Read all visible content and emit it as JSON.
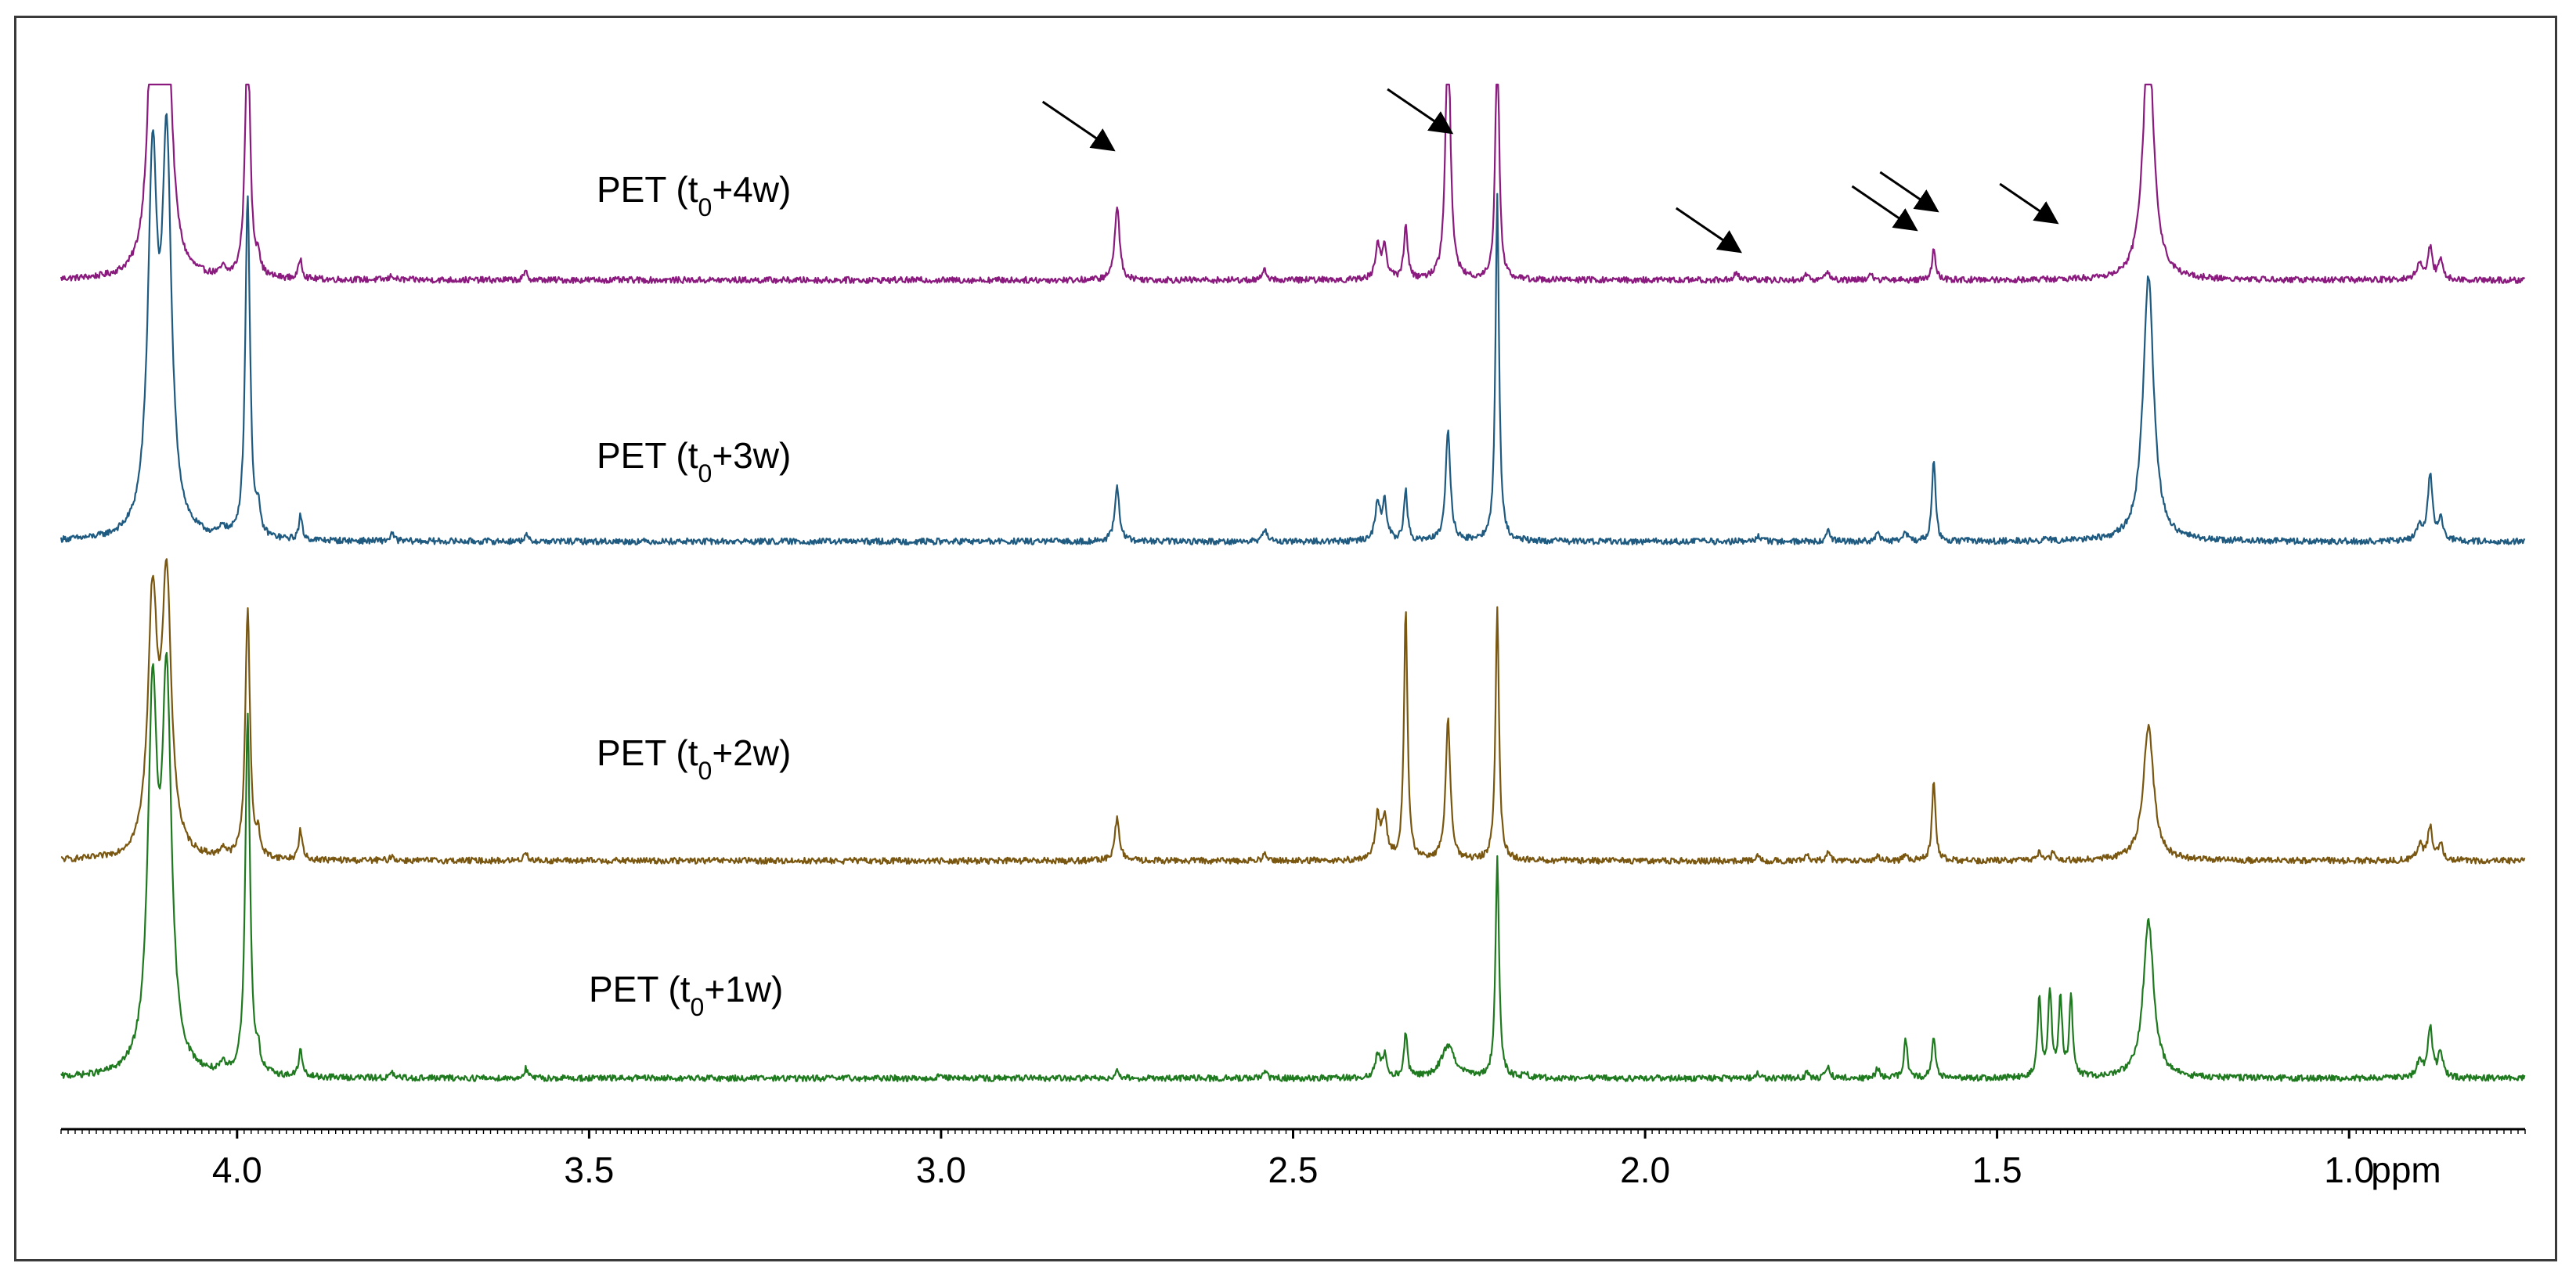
{
  "chart_data": {
    "type": "line",
    "title": "",
    "xlabel": "ppm",
    "x_reversed": true,
    "xlim": [
      4.25,
      0.75
    ],
    "x_ticks": [
      {
        "value": 4.0,
        "label": "4.0"
      },
      {
        "value": 3.5,
        "label": "3.5"
      },
      {
        "value": 3.0,
        "label": "3.0"
      },
      {
        "value": 2.5,
        "label": "2.5"
      },
      {
        "value": 2.0,
        "label": "2.0"
      },
      {
        "value": 1.5,
        "label": "1.5"
      },
      {
        "value": 1.0,
        "label": "1.0"
      }
    ],
    "series": [
      {
        "label_prefix": "PET (t",
        "label_sub": "0",
        "label_suffix": "+4w",
        "color": "#8a1a7e",
        "peaks": [
          [
            4.12,
            1.7,
            0.008
          ],
          [
            4.1,
            1.8,
            0.008
          ],
          [
            3.985,
            1.7,
            0.004
          ],
          [
            4.02,
            0.05,
            0.004
          ],
          [
            3.97,
            0.12,
            0.003
          ],
          [
            3.91,
            0.13,
            0.003
          ],
          [
            3.78,
            0.03,
            0.003
          ],
          [
            3.59,
            0.05,
            0.003
          ],
          [
            2.75,
            0.48,
            0.004
          ],
          [
            2.54,
            0.07,
            0.003
          ],
          [
            2.38,
            0.21,
            0.004
          ],
          [
            2.37,
            0.21,
            0.004
          ],
          [
            2.34,
            0.36,
            0.003
          ],
          [
            2.28,
            1.7,
            0.004
          ],
          [
            2.21,
            1.7,
            0.003
          ],
          [
            1.87,
            0.05,
            0.004
          ],
          [
            1.77,
            0.04,
            0.003
          ],
          [
            1.74,
            0.06,
            0.003
          ],
          [
            1.68,
            0.05,
            0.003
          ],
          [
            1.59,
            0.19,
            0.003
          ],
          [
            1.285,
            1.6,
            0.009
          ],
          [
            0.9,
            0.1,
            0.005
          ],
          [
            0.885,
            0.2,
            0.004
          ],
          [
            0.87,
            0.12,
            0.004
          ]
        ]
      },
      {
        "label_prefix": "PET (t",
        "label_sub": "0",
        "label_suffix": "+3w",
        "color": "#1f5a80",
        "peaks": [
          [
            4.12,
            2.3,
            0.008
          ],
          [
            4.1,
            2.4,
            0.008
          ],
          [
            3.985,
            2.2,
            0.004
          ],
          [
            4.02,
            0.06,
            0.004
          ],
          [
            3.97,
            0.14,
            0.003
          ],
          [
            3.91,
            0.15,
            0.003
          ],
          [
            3.78,
            0.05,
            0.003
          ],
          [
            3.59,
            0.04,
            0.003
          ],
          [
            2.75,
            0.34,
            0.004
          ],
          [
            2.54,
            0.09,
            0.003
          ],
          [
            2.38,
            0.24,
            0.004
          ],
          [
            2.37,
            0.24,
            0.004
          ],
          [
            2.34,
            0.32,
            0.003
          ],
          [
            2.28,
            0.72,
            0.004
          ],
          [
            2.21,
            2.2,
            0.003
          ],
          [
            1.84,
            0.04,
            0.003
          ],
          [
            1.74,
            0.07,
            0.003
          ],
          [
            1.67,
            0.07,
            0.003
          ],
          [
            1.63,
            0.06,
            0.003
          ],
          [
            1.59,
            0.53,
            0.003
          ],
          [
            1.43,
            0.02,
            0.004
          ],
          [
            1.285,
            1.7,
            0.009
          ],
          [
            0.9,
            0.1,
            0.005
          ],
          [
            0.885,
            0.42,
            0.004
          ],
          [
            0.87,
            0.14,
            0.004
          ]
        ]
      },
      {
        "label_prefix": "PET (t",
        "label_sub": "0",
        "label_suffix": "+2w",
        "color": "#7a5710",
        "peaks": [
          [
            4.12,
            1.6,
            0.008
          ],
          [
            4.1,
            1.7,
            0.008
          ],
          [
            3.985,
            1.6,
            0.004
          ],
          [
            4.02,
            0.06,
            0.004
          ],
          [
            3.97,
            0.12,
            0.003
          ],
          [
            3.91,
            0.19,
            0.003
          ],
          [
            3.78,
            0.03,
            0.003
          ],
          [
            3.59,
            0.06,
            0.003
          ],
          [
            2.75,
            0.27,
            0.004
          ],
          [
            2.54,
            0.06,
            0.003
          ],
          [
            2.38,
            0.27,
            0.004
          ],
          [
            2.37,
            0.27,
            0.004
          ],
          [
            2.34,
            1.6,
            0.003
          ],
          [
            2.28,
            0.9,
            0.004
          ],
          [
            2.21,
            1.6,
            0.003
          ],
          [
            1.84,
            0.03,
            0.003
          ],
          [
            1.77,
            0.03,
            0.003
          ],
          [
            1.74,
            0.05,
            0.003
          ],
          [
            1.67,
            0.04,
            0.003
          ],
          [
            1.63,
            0.04,
            0.003
          ],
          [
            1.59,
            0.5,
            0.003
          ],
          [
            1.44,
            0.05,
            0.003
          ],
          [
            1.42,
            0.05,
            0.003
          ],
          [
            1.285,
            0.85,
            0.009
          ],
          [
            0.9,
            0.1,
            0.005
          ],
          [
            0.885,
            0.21,
            0.004
          ],
          [
            0.87,
            0.1,
            0.004
          ]
        ]
      },
      {
        "label_prefix": "PET (t",
        "label_sub": "0",
        "label_suffix": "+1w",
        "color": "#1f7a1f",
        "peaks": [
          [
            4.12,
            2.3,
            0.008
          ],
          [
            4.1,
            2.4,
            0.008
          ],
          [
            3.985,
            2.3,
            0.004
          ],
          [
            4.02,
            0.05,
            0.004
          ],
          [
            3.97,
            0.11,
            0.003
          ],
          [
            3.91,
            0.17,
            0.003
          ],
          [
            3.78,
            0.03,
            0.003
          ],
          [
            3.59,
            0.06,
            0.003
          ],
          [
            3.0,
            0.03,
            0.003
          ],
          [
            2.75,
            0.05,
            0.004
          ],
          [
            2.54,
            0.04,
            0.003
          ],
          [
            2.38,
            0.14,
            0.004
          ],
          [
            2.37,
            0.14,
            0.004
          ],
          [
            2.34,
            0.28,
            0.003
          ],
          [
            2.28,
            0.2,
            0.012
          ],
          [
            2.21,
            1.4,
            0.003
          ],
          [
            2.17,
            0.03,
            0.003
          ],
          [
            1.84,
            0.04,
            0.003
          ],
          [
            1.77,
            0.04,
            0.003
          ],
          [
            1.74,
            0.09,
            0.003
          ],
          [
            1.67,
            0.07,
            0.003
          ],
          [
            1.63,
            0.25,
            0.003
          ],
          [
            1.59,
            0.27,
            0.003
          ],
          [
            1.44,
            0.5,
            0.003
          ],
          [
            1.425,
            0.55,
            0.003
          ],
          [
            1.41,
            0.5,
            0.003
          ],
          [
            1.395,
            0.5,
            0.003
          ],
          [
            1.285,
            1.0,
            0.009
          ],
          [
            0.9,
            0.1,
            0.005
          ],
          [
            0.885,
            0.32,
            0.004
          ],
          [
            0.87,
            0.16,
            0.004
          ]
        ]
      }
    ],
    "annotations": [
      {
        "type": "arrow",
        "points_to": 2.76,
        "series": 0
      },
      {
        "type": "arrow",
        "points_to": 2.28,
        "series": 0
      },
      {
        "type": "arrow",
        "points_to": 1.87,
        "series": 0
      },
      {
        "type": "arrow",
        "points_to": 1.62,
        "series": 0
      },
      {
        "type": "arrow",
        "points_to": 1.59,
        "series": 0
      },
      {
        "type": "arrow",
        "points_to": 1.42,
        "series": 0
      }
    ]
  }
}
